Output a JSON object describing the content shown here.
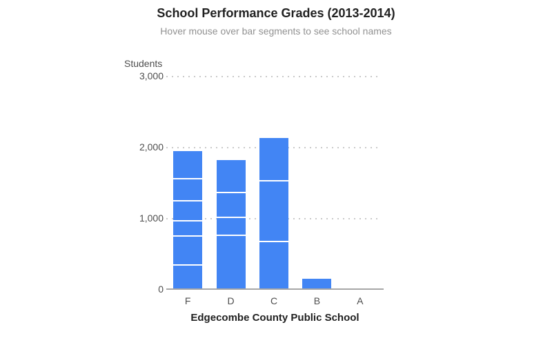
{
  "chart_data": {
    "type": "bar",
    "stacked": true,
    "title": "School Performance Grades (2013-2014)",
    "subtitle": "Hover mouse over bar segments to see school names",
    "ylabel": "Students",
    "xlabel": "Edgecombe County Public School",
    "ylim": [
      0,
      3000
    ],
    "grid": "horizontal-dotted",
    "legend": "none",
    "categories": [
      "F",
      "D",
      "C",
      "B",
      "A"
    ],
    "yticks": [
      {
        "value": 0,
        "label": "0"
      },
      {
        "value": 1000,
        "label": "1,000"
      },
      {
        "value": 2000,
        "label": "2,000"
      },
      {
        "value": 3000,
        "label": "3,000"
      }
    ],
    "stacks": [
      {
        "category": "F",
        "total": 1940,
        "segments_bottom_to_top": [
          350,
          410,
          210,
          280,
          310,
          380
        ]
      },
      {
        "category": "D",
        "total": 1820,
        "segments_bottom_to_top": [
          770,
          250,
          350,
          450
        ]
      },
      {
        "category": "C",
        "total": 2125,
        "segments_bottom_to_top": [
          680,
          855,
          590
        ]
      },
      {
        "category": "B",
        "total": 145,
        "segments_bottom_to_top": [
          145
        ]
      },
      {
        "category": "A",
        "total": 0,
        "segments_bottom_to_top": []
      }
    ],
    "colors": {
      "bar": "#4285f4",
      "segment_divider": "#ffffff",
      "grid": "#c9c9c9",
      "axis_line": "#a6a6a6",
      "title": "#212121",
      "subtitle": "#919191",
      "axis_text": "#4d4d4d",
      "xlabel_text": "#212121"
    }
  }
}
